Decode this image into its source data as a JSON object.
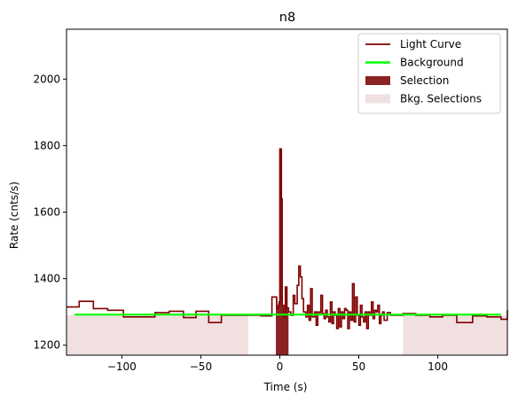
{
  "chart_data": {
    "type": "line",
    "title": "n8",
    "xlabel": "Time (s)",
    "ylabel": "Rate (cnts/s)",
    "xlim": [
      -135,
      144
    ],
    "ylim": [
      1170,
      2150
    ],
    "xticks": [
      -100,
      -50,
      0,
      50,
      100
    ],
    "yticks": [
      1200,
      1400,
      1600,
      1800,
      2000
    ],
    "xtick_labels": [
      "−100",
      "−50",
      "0",
      "50",
      "100"
    ],
    "ytick_labels": [
      "1200",
      "1400",
      "1600",
      "1800",
      "2000"
    ],
    "legend_position": "upper right",
    "colors": {
      "light_curve": "#800000",
      "background": "#00ff00",
      "selection": "#8b2323",
      "bkg_selection": "#f0e0e0",
      "axes": "#000000"
    },
    "legend": [
      {
        "key": "light_curve",
        "label": "Light Curve",
        "style": "line"
      },
      {
        "key": "background",
        "label": "Background",
        "style": "line"
      },
      {
        "key": "selection",
        "label": "Selection",
        "style": "patch"
      },
      {
        "key": "bkg_selection",
        "label": "Bkg. Selections",
        "style": "patch"
      }
    ],
    "light_curve": {
      "edges": [
        -135,
        -127,
        -118,
        -109,
        -99,
        -90,
        -79,
        -70,
        -61,
        -53,
        -45,
        -37,
        -28,
        -20,
        -12,
        -5,
        -2,
        -1,
        -0.5,
        0,
        1,
        1.5,
        2.5,
        3.5,
        4.5,
        5.5,
        7,
        8.5,
        9.5,
        11,
        12,
        13,
        14,
        15,
        16.5,
        17.5,
        18.5,
        19.5,
        20.5,
        22,
        23,
        24,
        25,
        26,
        27,
        28,
        29,
        30,
        31,
        32,
        33,
        34,
        35,
        36,
        37,
        38,
        39,
        40,
        41,
        42,
        43,
        44,
        45,
        46,
        47,
        48,
        49,
        50,
        51,
        52,
        53,
        54,
        55,
        56,
        57,
        58,
        59,
        60,
        61,
        62,
        63,
        64,
        65,
        66,
        68,
        70,
        78,
        86,
        95,
        103,
        112,
        122,
        131,
        140,
        144
      ],
      "values": [
        1315,
        1332,
        1310,
        1305,
        1285,
        1285,
        1298,
        1302,
        1283,
        1302,
        1268,
        1290,
        1290,
        1290,
        1288,
        1345,
        1310,
        1320,
        1330,
        1790,
        1640,
        1320,
        1285,
        1375,
        1312,
        1300,
        1290,
        1350,
        1325,
        1380,
        1438,
        1405,
        1340,
        1300,
        1285,
        1320,
        1275,
        1370,
        1285,
        1300,
        1260,
        1300,
        1298,
        1350,
        1295,
        1280,
        1305,
        1285,
        1270,
        1330,
        1265,
        1300,
        1290,
        1250,
        1310,
        1255,
        1300,
        1280,
        1310,
        1305,
        1250,
        1300,
        1275,
        1385,
        1270,
        1345,
        1290,
        1260,
        1320,
        1285,
        1270,
        1300,
        1250,
        1300,
        1290,
        1330,
        1280,
        1305,
        1300,
        1320,
        1265,
        1290,
        1300,
        1275,
        1298,
        1290,
        1295,
        1290,
        1285,
        1290,
        1268,
        1288,
        1285,
        1278,
        1305
      ]
    },
    "background_level": 1292,
    "selection": {
      "x0": -2.5,
      "x1": 5.5
    },
    "bkg_selections": [
      {
        "x0": -135,
        "x1": -20,
        "y": 1290
      },
      {
        "x0": 78,
        "x1": 144,
        "y": 1290
      }
    ]
  }
}
